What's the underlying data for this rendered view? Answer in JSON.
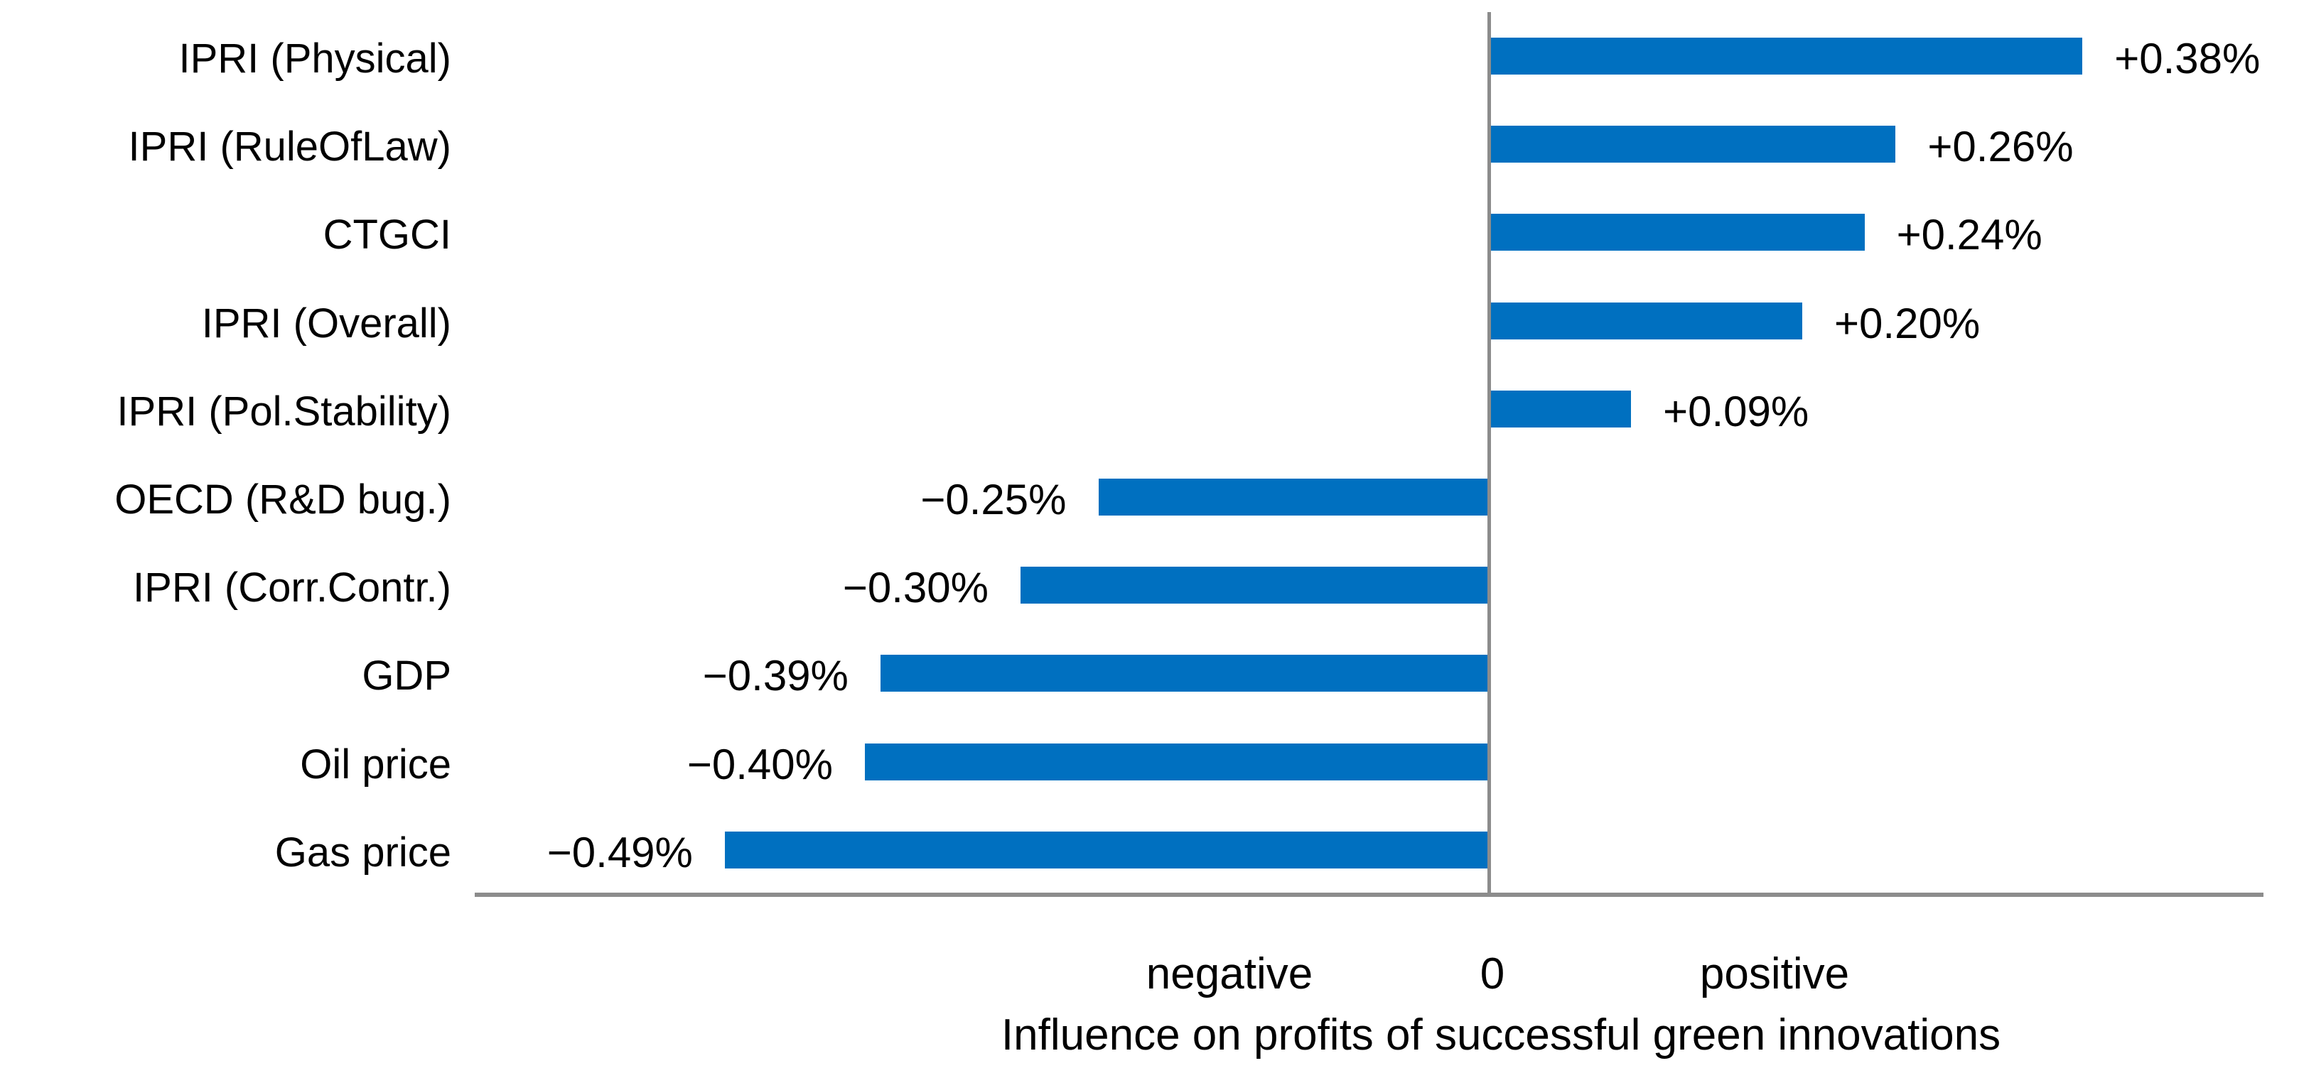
{
  "chart_data": {
    "type": "bar",
    "orientation": "horizontal",
    "categories": [
      "IPRI (Physical)",
      "IPRI (RuleOfLaw)",
      "CTGCI",
      "IPRI (Overall)",
      "IPRI (Pol.Stability)",
      "OECD (R&D bug.)",
      "IPRI (Corr.Contr.)",
      "GDP",
      "Oil price",
      "Gas price"
    ],
    "values": [
      0.38,
      0.26,
      0.24,
      0.2,
      0.09,
      -0.25,
      -0.3,
      -0.39,
      -0.4,
      -0.49
    ],
    "data_labels": [
      "+0.38%",
      "+0.26%",
      "+0.24%",
      "+0.20%",
      "+0.09%",
      "−0.25%",
      "−0.30%",
      "−0.39%",
      "−0.40%",
      "−0.49%"
    ],
    "xlabel": "Influence on profits of successful green innovations",
    "x_zone_labels": [
      "negative",
      "0",
      "positive"
    ],
    "xlim": [
      -0.65,
      0.52
    ],
    "grid": false,
    "legend": false,
    "unit": "%",
    "colors": {
      "bar": "#0070C0",
      "axis": "#8C8C8C",
      "text": "#000000",
      "background": "#FFFFFF"
    }
  }
}
